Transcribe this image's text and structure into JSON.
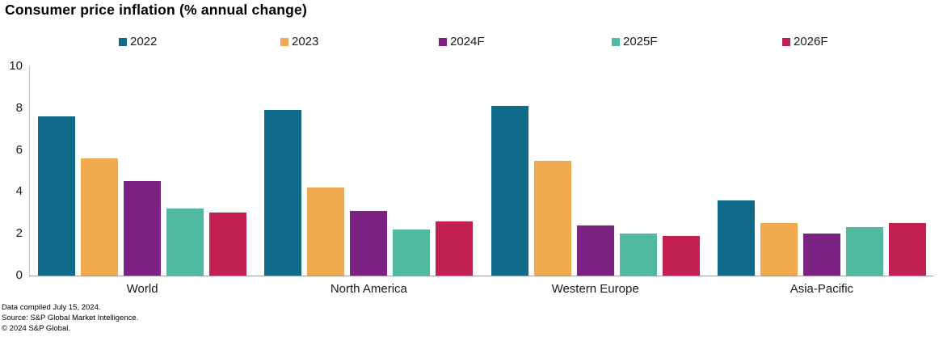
{
  "title": "Consumer price inflation (% annual change)",
  "chart_data": {
    "type": "bar",
    "title": "Consumer price inflation (% annual change)",
    "categories": [
      "World",
      "North America",
      "Western Europe",
      "Asia-Pacific"
    ],
    "series": [
      {
        "name": "2022",
        "color": "#106C8A",
        "values": [
          7.6,
          7.9,
          8.1,
          3.6
        ]
      },
      {
        "name": "2023",
        "color": "#EFA94E",
        "values": [
          5.6,
          4.2,
          5.5,
          2.5
        ]
      },
      {
        "name": "2024F",
        "color": "#7B2282",
        "values": [
          4.5,
          3.1,
          2.4,
          2.0
        ]
      },
      {
        "name": "2025F",
        "color": "#4FB9A1",
        "values": [
          3.2,
          2.2,
          2.0,
          2.3
        ]
      },
      {
        "name": "2026F",
        "color": "#C22051",
        "values": [
          3.0,
          2.6,
          1.9,
          2.5
        ]
      }
    ],
    "xlabel": "",
    "ylabel": "",
    "ylim": [
      0,
      10
    ],
    "yticks": [
      0,
      2,
      4,
      6,
      8,
      10
    ],
    "grid": false,
    "legend_position": "top"
  },
  "axis_colors": {
    "vertical": "#c4c4c4",
    "baseline": "#9a9a9a"
  },
  "footer": {
    "line1": "Data compiled July 15, 2024.",
    "line2": "Source: S&P Global Market Intelligence.",
    "line3": "© 2024 S&P Global."
  }
}
